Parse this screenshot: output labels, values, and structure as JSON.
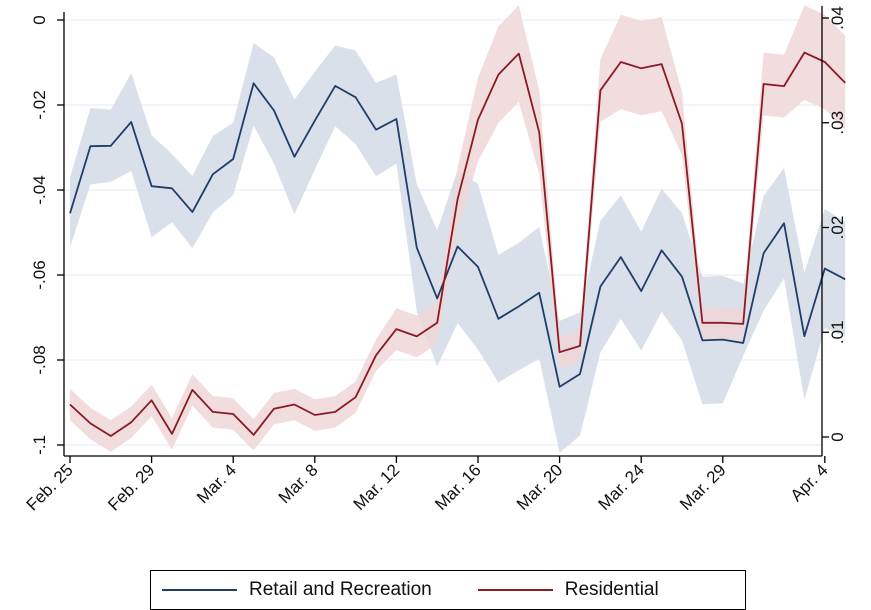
{
  "chart_data": {
    "type": "line",
    "x_ticks": [
      "Feb. 25",
      "Feb. 29",
      "Mar. 4",
      "Mar. 8",
      "Mar. 12",
      "Mar. 16",
      "Mar. 20",
      "Mar. 24",
      "Mar. 29",
      "Apr. 4"
    ],
    "left_axis": {
      "ylim": [
        -0.1,
        0.0
      ],
      "ticks": [
        "0",
        "-.02",
        "-.04",
        "-.06",
        "-.08",
        "-.1"
      ],
      "tick_values": [
        0,
        -0.02,
        -0.04,
        -0.06,
        -0.08,
        -0.1
      ]
    },
    "right_axis": {
      "ylim": [
        0.0,
        0.04
      ],
      "ticks": [
        ".04",
        ".03",
        ".02",
        ".01",
        "0"
      ],
      "tick_values": [
        0.04,
        0.03,
        0.02,
        0.01,
        0
      ]
    },
    "grid": true,
    "legend_position": "bottom",
    "series": [
      {
        "name": "Retail and Recreation",
        "axis": "left",
        "color": "#1f3d6b",
        "band_color": "#d3dbe5",
        "values": [
          -0.0455,
          -0.0297,
          -0.0296,
          -0.024,
          -0.0391,
          -0.0396,
          -0.0452,
          -0.0363,
          -0.0327,
          -0.0149,
          -0.0213,
          -0.0322,
          -0.0237,
          -0.0155,
          -0.0182,
          -0.0258,
          -0.0233,
          -0.0536,
          -0.0655,
          -0.0533,
          -0.0581,
          -0.0703,
          -0.0674,
          -0.0642,
          -0.0863,
          -0.0833,
          -0.0627,
          -0.0558,
          -0.0638,
          -0.0542,
          -0.0604,
          -0.0754,
          -0.0752,
          -0.076,
          -0.0549,
          -0.0478,
          -0.0744,
          -0.0585,
          -0.061
        ],
        "lower": [
          -0.0535,
          -0.0387,
          -0.0381,
          -0.0355,
          -0.0511,
          -0.0476,
          -0.0537,
          -0.0453,
          -0.0412,
          -0.0249,
          -0.0338,
          -0.0457,
          -0.0352,
          -0.025,
          -0.0292,
          -0.0368,
          -0.0338,
          -0.0686,
          -0.0815,
          -0.0713,
          -0.0776,
          -0.0853,
          -0.0824,
          -0.0797,
          -0.1018,
          -0.0978,
          -0.0782,
          -0.0703,
          -0.0778,
          -0.0687,
          -0.0754,
          -0.0904,
          -0.0902,
          -0.079,
          -0.0684,
          -0.0608,
          -0.0894,
          -0.0725,
          -0.0745
        ],
        "upper": [
          -0.037,
          -0.0207,
          -0.0211,
          -0.0125,
          -0.0271,
          -0.0316,
          -0.0367,
          -0.0273,
          -0.0242,
          -0.0054,
          -0.0088,
          -0.0187,
          -0.0122,
          -0.006,
          -0.0072,
          -0.0148,
          -0.0128,
          -0.0386,
          -0.0495,
          -0.0353,
          -0.0386,
          -0.0553,
          -0.0524,
          -0.0487,
          -0.0708,
          -0.0688,
          -0.0472,
          -0.0413,
          -0.0498,
          -0.0397,
          -0.0454,
          -0.0604,
          -0.0602,
          -0.062,
          -0.0414,
          -0.0348,
          -0.0594,
          -0.0445,
          -0.0475
        ]
      },
      {
        "name": "Residential",
        "axis": "right",
        "color": "#8b1a24",
        "band_color": "#eed6d8",
        "values": [
          0.0031,
          0.0013,
          0.0001,
          0.0014,
          0.0035,
          0.0003,
          0.0045,
          0.0024,
          0.0022,
          0.0002,
          0.0027,
          0.0031,
          0.0021,
          0.0024,
          0.0038,
          0.0078,
          0.0103,
          0.0096,
          0.0109,
          0.0227,
          0.0303,
          0.0346,
          0.0366,
          0.0291,
          0.0081,
          0.0087,
          0.0331,
          0.0358,
          0.0352,
          0.0356,
          0.0299,
          0.0109,
          0.0109,
          0.0108,
          0.0337,
          0.0335,
          0.0367,
          0.0358,
          0.0338
        ],
        "lower": [
          0.0016,
          -0.0002,
          -0.0014,
          -0.0001,
          0.002,
          -0.0012,
          0.003,
          0.0009,
          0.0007,
          -0.0013,
          0.0012,
          0.0016,
          0.0006,
          0.0009,
          0.0023,
          0.0063,
          0.0083,
          0.0076,
          0.0089,
          0.0197,
          0.0263,
          0.03,
          0.032,
          0.0251,
          0.0066,
          0.0072,
          0.0301,
          0.0313,
          0.0307,
          0.0311,
          0.0269,
          0.0094,
          0.0094,
          0.0093,
          0.0307,
          0.0305,
          0.0322,
          0.0313,
          0.0293
        ],
        "upper": [
          0.0046,
          0.0028,
          0.0016,
          0.0029,
          0.005,
          0.0018,
          0.006,
          0.0039,
          0.0037,
          0.0017,
          0.0042,
          0.0046,
          0.0036,
          0.0039,
          0.0053,
          0.0093,
          0.0123,
          0.0116,
          0.0129,
          0.0257,
          0.0343,
          0.0392,
          0.0412,
          0.0331,
          0.0096,
          0.0102,
          0.0361,
          0.0403,
          0.0397,
          0.0401,
          0.0329,
          0.0124,
          0.0124,
          0.0123,
          0.0367,
          0.0365,
          0.0412,
          0.0403,
          0.0383
        ]
      }
    ]
  },
  "legend": {
    "retail_label": "Retail and Recreation",
    "residential_label": "Residential"
  }
}
